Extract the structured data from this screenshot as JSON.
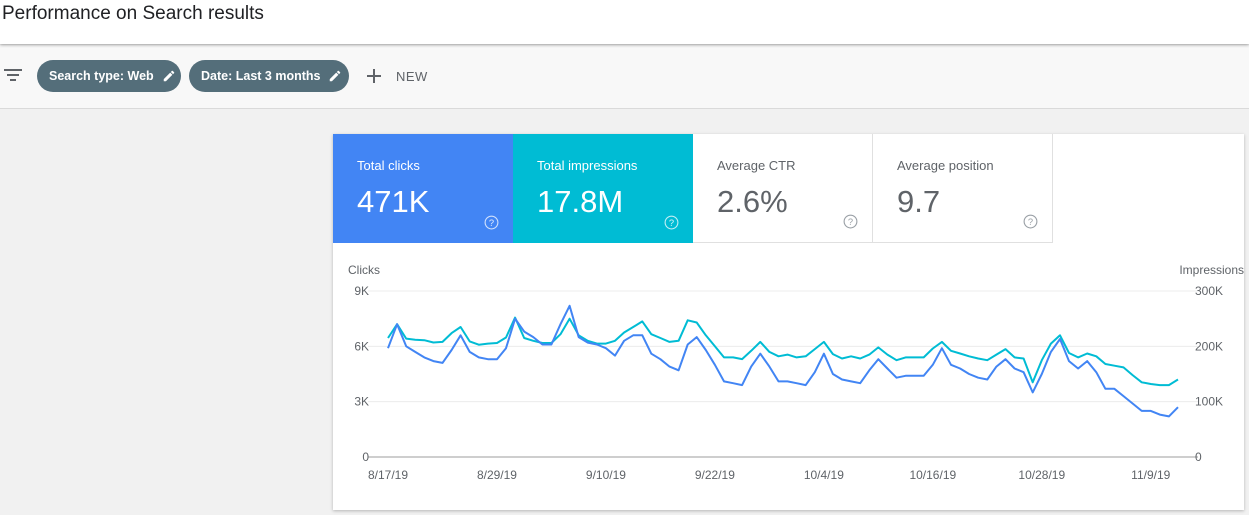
{
  "page": {
    "title": "Performance on Search results"
  },
  "filters": {
    "chips": [
      {
        "label": "Search type: Web",
        "icon": "pencil-icon"
      },
      {
        "label": "Date: Last 3 months",
        "icon": "pencil-icon"
      }
    ],
    "new_label": "NEW"
  },
  "metrics": [
    {
      "label": "Total clicks",
      "value": "471K"
    },
    {
      "label": "Total impressions",
      "value": "17.8M"
    },
    {
      "label": "Average CTR",
      "value": "2.6%"
    },
    {
      "label": "Average position",
      "value": "9.7"
    }
  ],
  "colors": {
    "clicks": "#4285f4",
    "impressions": "#00bcd4",
    "chip": "#546e7a",
    "text_muted": "#5f6368"
  },
  "chart_data": {
    "type": "line",
    "ylabel_left": "Clicks",
    "ylabel_right": "Impressions",
    "y_left_ticks": [
      "9K",
      "6K",
      "3K",
      "0"
    ],
    "y_right_ticks": [
      "300K",
      "200K",
      "100K",
      "0"
    ],
    "ylim_left": [
      0,
      9000
    ],
    "ylim_right": [
      0,
      300000
    ],
    "grid": true,
    "x_tick_labels": [
      "8/17/19",
      "8/29/19",
      "9/10/19",
      "9/22/19",
      "10/4/19",
      "10/16/19",
      "10/28/19",
      "11/9/19"
    ],
    "x_tick_indices": [
      0,
      12,
      24,
      36,
      48,
      60,
      72,
      84
    ],
    "series": [
      {
        "name": "Clicks",
        "axis": "left",
        "values": [
          5900,
          7200,
          6000,
          5700,
          5400,
          5200,
          5100,
          5800,
          6600,
          5700,
          5400,
          5300,
          5300,
          5900,
          7500,
          6800,
          6500,
          6100,
          6100,
          7200,
          8200,
          6500,
          6200,
          6100,
          5900,
          5500,
          6300,
          6600,
          6600,
          5600,
          5300,
          4900,
          4700,
          6100,
          6500,
          5800,
          5000,
          4100,
          4000,
          3900,
          4900,
          5600,
          4900,
          4100,
          4100,
          4000,
          3900,
          4600,
          5600,
          4500,
          4200,
          4100,
          4000,
          4700,
          5300,
          4800,
          4300,
          4400,
          4400,
          4400,
          5000,
          5900,
          5000,
          4800,
          4500,
          4300,
          4200,
          4900,
          5300,
          4800,
          4600,
          3500,
          4500,
          5700,
          6400,
          5200,
          4800,
          5200,
          4600,
          3700,
          3700,
          3300,
          2900,
          2500,
          2500,
          2300,
          2200,
          2700
        ]
      },
      {
        "name": "Impressions",
        "axis": "right",
        "values": [
          215000,
          240000,
          214000,
          212000,
          211000,
          207000,
          208000,
          224000,
          235000,
          209000,
          203000,
          205000,
          206000,
          216000,
          252000,
          215000,
          210000,
          206000,
          206000,
          222000,
          250000,
          220000,
          210000,
          205000,
          205000,
          210000,
          225000,
          235000,
          245000,
          222000,
          215000,
          208000,
          210000,
          247000,
          243000,
          220000,
          200000,
          180000,
          180000,
          177000,
          192000,
          208000,
          190000,
          182000,
          185000,
          180000,
          182000,
          195000,
          208000,
          186000,
          178000,
          182000,
          178000,
          185000,
          198000,
          185000,
          175000,
          180000,
          180000,
          180000,
          196000,
          208000,
          192000,
          187000,
          182000,
          178000,
          175000,
          185000,
          195000,
          180000,
          178000,
          135000,
          175000,
          205000,
          220000,
          188000,
          180000,
          187000,
          182000,
          168000,
          165000,
          162000,
          148000,
          135000,
          132000,
          130000,
          130000,
          140000
        ]
      }
    ]
  }
}
